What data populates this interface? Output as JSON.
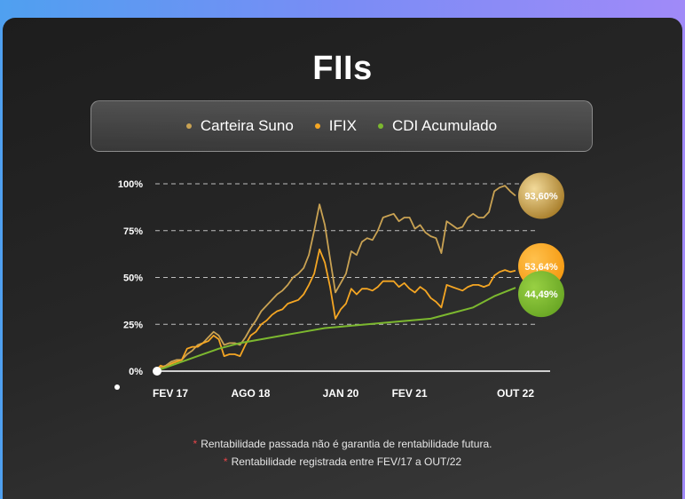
{
  "title": "FIIs",
  "legend": [
    {
      "label": "Carteira Suno",
      "color": "#c9a253"
    },
    {
      "label": "IFIX",
      "color": "#f5a623"
    },
    {
      "label": "CDI Acumulado",
      "color": "#7cb82f"
    }
  ],
  "footnotes": [
    "Rentabilidade passada não é garantia de rentabilidade futura.",
    "Rentabilidade registrada entre FEV/17 a OUT/22"
  ],
  "chart_data": {
    "type": "line",
    "y_ticks": [
      "100%",
      "75%",
      "50%",
      "25%",
      "0%"
    ],
    "y_tick_values": [
      100,
      75,
      50,
      25,
      0
    ],
    "x_ticks": [
      "FEV 17",
      "AGO 18",
      "JAN 20",
      "FEV 21",
      "OUT 22"
    ],
    "x_tick_values": [
      "2017-02",
      "2018-08",
      "2020-01",
      "2021-02",
      "2022-10"
    ],
    "ylim": [
      0,
      100
    ],
    "grid": "dashed horizontal",
    "series": [
      {
        "name": "Carteira Suno",
        "color": "#c9a253",
        "end_label": "93,60%",
        "points": [
          [
            "2017-02",
            0
          ],
          [
            "2017-03",
            2
          ],
          [
            "2017-04",
            3
          ],
          [
            "2017-05",
            5
          ],
          [
            "2017-06",
            6
          ],
          [
            "2017-07",
            6
          ],
          [
            "2017-08",
            9
          ],
          [
            "2017-09",
            11
          ],
          [
            "2017-10",
            14
          ],
          [
            "2017-11",
            15
          ],
          [
            "2017-12",
            18
          ],
          [
            "2018-01",
            21
          ],
          [
            "2018-02",
            19
          ],
          [
            "2018-03",
            14
          ],
          [
            "2018-04",
            15
          ],
          [
            "2018-05",
            15
          ],
          [
            "2018-06",
            14
          ],
          [
            "2018-07",
            18
          ],
          [
            "2018-08",
            23
          ],
          [
            "2018-09",
            27
          ],
          [
            "2018-10",
            32
          ],
          [
            "2018-11",
            35
          ],
          [
            "2018-12",
            38
          ],
          [
            "2019-01",
            41
          ],
          [
            "2019-02",
            43
          ],
          [
            "2019-03",
            46
          ],
          [
            "2019-04",
            50
          ],
          [
            "2019-05",
            52
          ],
          [
            "2019-06",
            55
          ],
          [
            "2019-07",
            62
          ],
          [
            "2019-08",
            75
          ],
          [
            "2019-09",
            89
          ],
          [
            "2019-10",
            78
          ],
          [
            "2019-11",
            60
          ],
          [
            "2019-12",
            42
          ],
          [
            "2020-01",
            47
          ],
          [
            "2020-02",
            52
          ],
          [
            "2020-03",
            64
          ],
          [
            "2020-04",
            62
          ],
          [
            "2020-05",
            69
          ],
          [
            "2020-06",
            71
          ],
          [
            "2020-07",
            70
          ],
          [
            "2020-08",
            75
          ],
          [
            "2020-09",
            82
          ],
          [
            "2020-10",
            83
          ],
          [
            "2020-11",
            84
          ],
          [
            "2020-12",
            80
          ],
          [
            "2021-01",
            82
          ],
          [
            "2021-02",
            82
          ],
          [
            "2021-03",
            76
          ],
          [
            "2021-04",
            78
          ],
          [
            "2021-05",
            74
          ],
          [
            "2021-06",
            72
          ],
          [
            "2021-07",
            71
          ],
          [
            "2021-08",
            63
          ],
          [
            "2021-09",
            80
          ],
          [
            "2021-10",
            78
          ],
          [
            "2021-11",
            76
          ],
          [
            "2021-12",
            77
          ],
          [
            "2022-01",
            82
          ],
          [
            "2022-02",
            84
          ],
          [
            "2022-03",
            82
          ],
          [
            "2022-04",
            82
          ],
          [
            "2022-05",
            85
          ],
          [
            "2022-06",
            96
          ],
          [
            "2022-07",
            98
          ],
          [
            "2022-08",
            99
          ],
          [
            "2022-09",
            96
          ],
          [
            "2022-10",
            93.6
          ]
        ]
      },
      {
        "name": "IFIX",
        "color": "#f5a623",
        "end_label": "53,64%",
        "points": [
          [
            "2017-02",
            0
          ],
          [
            "2017-03",
            3
          ],
          [
            "2017-04",
            2
          ],
          [
            "2017-05",
            4
          ],
          [
            "2017-06",
            5
          ],
          [
            "2017-07",
            6
          ],
          [
            "2017-08",
            12
          ],
          [
            "2017-09",
            13
          ],
          [
            "2017-10",
            13
          ],
          [
            "2017-11",
            15
          ],
          [
            "2017-12",
            16
          ],
          [
            "2018-01",
            19
          ],
          [
            "2018-02",
            17
          ],
          [
            "2018-03",
            8
          ],
          [
            "2018-04",
            9
          ],
          [
            "2018-05",
            9
          ],
          [
            "2018-06",
            8
          ],
          [
            "2018-07",
            14
          ],
          [
            "2018-08",
            19
          ],
          [
            "2018-09",
            21
          ],
          [
            "2018-10",
            25
          ],
          [
            "2018-11",
            27
          ],
          [
            "2018-12",
            30
          ],
          [
            "2019-01",
            32
          ],
          [
            "2019-02",
            33
          ],
          [
            "2019-03",
            36
          ],
          [
            "2019-04",
            37
          ],
          [
            "2019-05",
            38
          ],
          [
            "2019-06",
            41
          ],
          [
            "2019-07",
            46
          ],
          [
            "2019-08",
            52
          ],
          [
            "2019-09",
            65
          ],
          [
            "2019-10",
            58
          ],
          [
            "2019-11",
            45
          ],
          [
            "2019-12",
            28
          ],
          [
            "2020-01",
            33
          ],
          [
            "2020-02",
            36
          ],
          [
            "2020-03",
            44
          ],
          [
            "2020-04",
            41
          ],
          [
            "2020-05",
            44
          ],
          [
            "2020-06",
            44
          ],
          [
            "2020-07",
            43
          ],
          [
            "2020-08",
            45
          ],
          [
            "2020-09",
            48
          ],
          [
            "2020-10",
            48
          ],
          [
            "2020-11",
            48
          ],
          [
            "2020-12",
            45
          ],
          [
            "2021-01",
            47
          ],
          [
            "2021-02",
            44
          ],
          [
            "2021-03",
            42
          ],
          [
            "2021-04",
            45
          ],
          [
            "2021-05",
            43
          ],
          [
            "2021-06",
            39
          ],
          [
            "2021-07",
            37
          ],
          [
            "2021-08",
            34
          ],
          [
            "2021-09",
            46
          ],
          [
            "2021-10",
            45
          ],
          [
            "2021-11",
            44
          ],
          [
            "2021-12",
            43
          ],
          [
            "2022-01",
            45
          ],
          [
            "2022-02",
            46
          ],
          [
            "2022-03",
            46
          ],
          [
            "2022-04",
            45
          ],
          [
            "2022-05",
            46
          ],
          [
            "2022-06",
            51
          ],
          [
            "2022-07",
            53
          ],
          [
            "2022-08",
            54
          ],
          [
            "2022-09",
            53
          ],
          [
            "2022-10",
            53.64
          ]
        ]
      },
      {
        "name": "CDI Acumulado",
        "color": "#7cb82f",
        "end_label": "44,49%",
        "points": [
          [
            "2017-02",
            0
          ],
          [
            "2017-06",
            4
          ],
          [
            "2017-10",
            8
          ],
          [
            "2018-02",
            12
          ],
          [
            "2018-06",
            15
          ],
          [
            "2018-10",
            17
          ],
          [
            "2019-02",
            19
          ],
          [
            "2019-06",
            21
          ],
          [
            "2019-10",
            23
          ],
          [
            "2020-02",
            24
          ],
          [
            "2020-06",
            25
          ],
          [
            "2020-10",
            26
          ],
          [
            "2021-02",
            27
          ],
          [
            "2021-06",
            28
          ],
          [
            "2021-10",
            31
          ],
          [
            "2022-02",
            34
          ],
          [
            "2022-06",
            40
          ],
          [
            "2022-10",
            44.49
          ]
        ]
      }
    ]
  }
}
